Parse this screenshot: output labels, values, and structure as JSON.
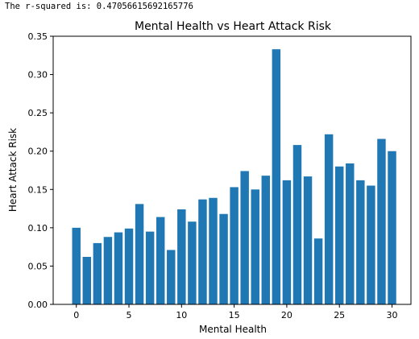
{
  "output": {
    "text": "The r-squared is: 0.47056615692165776"
  },
  "chart_data": {
    "type": "bar",
    "title": "Mental Health vs Heart Attack Risk",
    "xlabel": "Mental Health",
    "ylabel": "Heart Attack Risk",
    "bar_color": "#1f77b4",
    "x": [
      0,
      1,
      2,
      3,
      4,
      5,
      6,
      7,
      8,
      9,
      10,
      11,
      12,
      13,
      14,
      15,
      16,
      17,
      18,
      19,
      20,
      21,
      22,
      23,
      24,
      25,
      26,
      27,
      28,
      29,
      30
    ],
    "values": [
      0.1,
      0.062,
      0.08,
      0.088,
      0.094,
      0.099,
      0.131,
      0.095,
      0.114,
      0.071,
      0.124,
      0.108,
      0.137,
      0.139,
      0.118,
      0.153,
      0.174,
      0.15,
      0.168,
      0.333,
      0.162,
      0.208,
      0.167,
      0.086,
      0.222,
      0.18,
      0.184,
      0.162,
      0.155,
      0.216,
      0.2
    ],
    "xlim": [
      -2.2,
      31.8
    ],
    "ylim": [
      0,
      0.35
    ],
    "xticks": [
      0,
      5,
      10,
      15,
      20,
      25,
      30
    ],
    "xtick_labels": [
      "0",
      "5",
      "10",
      "15",
      "20",
      "25",
      "30"
    ],
    "yticks": [
      0,
      0.05,
      0.1,
      0.15,
      0.2,
      0.25,
      0.3,
      0.35
    ],
    "ytick_labels": [
      "0.00",
      "0.05",
      "0.10",
      "0.15",
      "0.20",
      "0.25",
      "0.30",
      "0.35"
    ],
    "grid": false,
    "legend": false
  }
}
